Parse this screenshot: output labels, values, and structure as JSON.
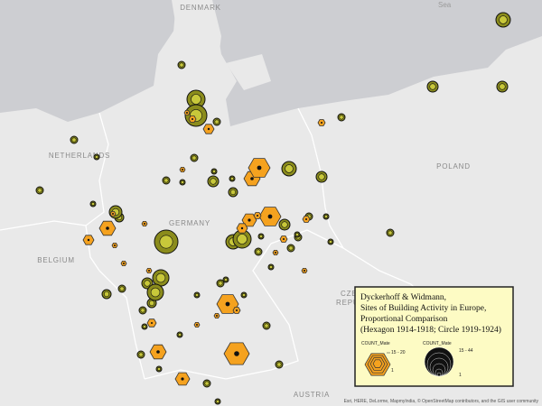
{
  "map": {
    "labels": {
      "denmark": "DENMARK",
      "netherlands": "NETHERLANDS",
      "poland": "POLAND",
      "germany": "GERMANY",
      "belgium": "BELGIUM",
      "czech_1": "CZE",
      "czech_2": "REPU",
      "austria": "AUSTRIA",
      "sea": "Sea"
    },
    "legend": {
      "title_lines": [
        "Dyckerhoff & Widmann,",
        "Sites of Building Activity in Europe,",
        "Proportional Comparison",
        "(Hexagon 1914-1918; Circle 1919-1924)"
      ],
      "hexagon": {
        "field": "COUNT_Mate",
        "max_label": "15 - 20",
        "min_label": "1"
      },
      "circle": {
        "field": "COUNT_Mate",
        "max_label": "15 - 44",
        "min_label": "1"
      }
    },
    "attribution": "Esri, HERE, DeLorme, MapmyIndia, © OpenStreetMap contributors, and the GIS user community"
  }
}
